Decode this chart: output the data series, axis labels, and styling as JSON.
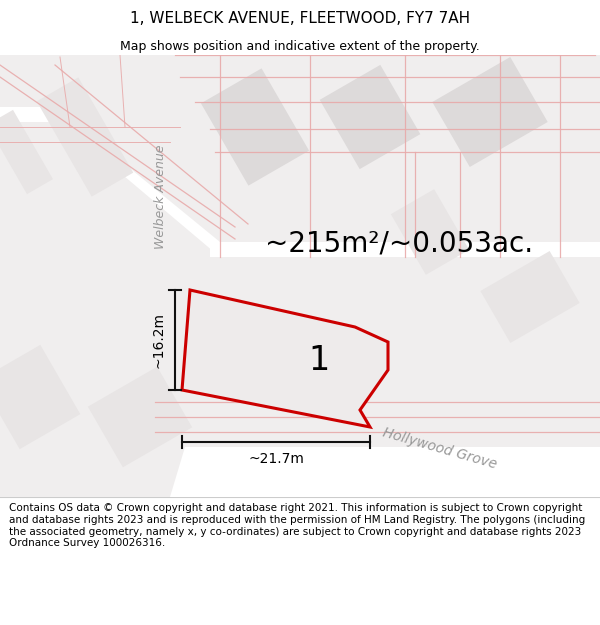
{
  "title": "1, WELBECK AVENUE, FLEETWOOD, FY7 7AH",
  "subtitle": "Map shows position and indicative extent of the property.",
  "area_label": "~215m²/~0.053ac.",
  "number_label": "1",
  "dim_width": "~21.7m",
  "dim_height": "~16.2m",
  "street_welbeck": "Welbeck Avenue",
  "street_hollywood": "Hollywood Grove",
  "footer": "Contains OS data © Crown copyright and database right 2021. This information is subject to Crown copyright and database rights 2023 and is reproduced with the permission of HM Land Registry. The polygons (including the associated geometry, namely x, y co-ordinates) are subject to Crown copyright and database rights 2023 Ordnance Survey 100026316.",
  "map_bg": "#f0eeee",
  "block_fill": "#dddada",
  "block_fill2": "#e8e5e5",
  "road_fill": "#ffffff",
  "red_color": "#cc0000",
  "pink_color": "#e8aaaa",
  "pink_light": "#f0c8c8",
  "dim_color": "#111111",
  "street_color": "#999999",
  "title_fontsize": 11,
  "subtitle_fontsize": 9,
  "area_fontsize": 20,
  "number_fontsize": 24,
  "street_fontsize": 9,
  "dim_fontsize": 10,
  "footer_fontsize": 7.5
}
